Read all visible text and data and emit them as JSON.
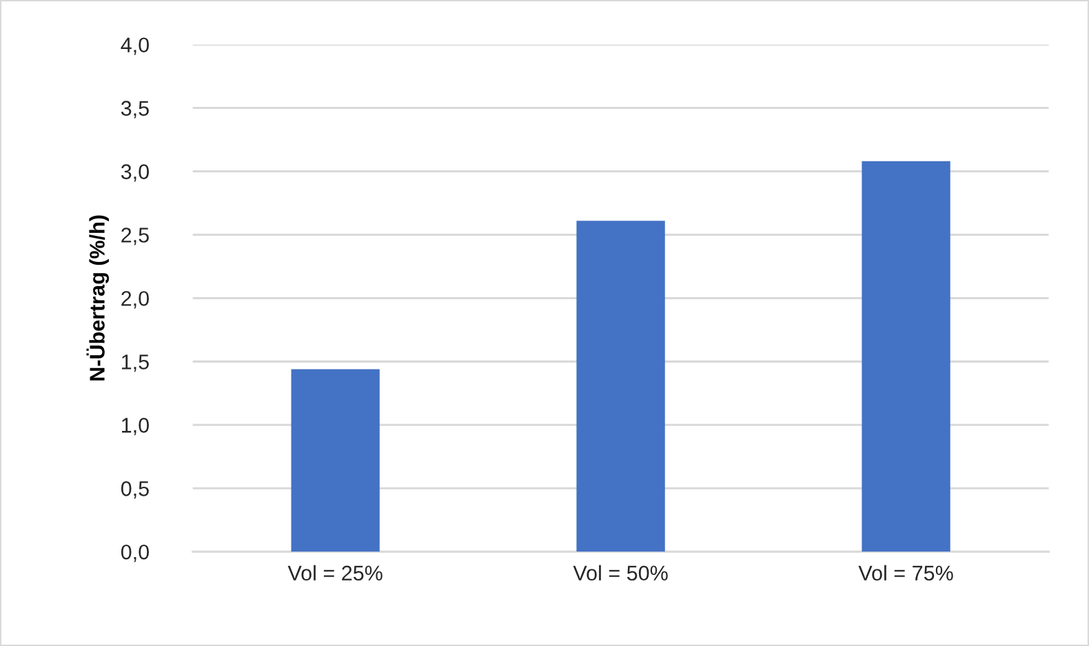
{
  "chart_data": {
    "type": "bar",
    "ylabel": "N-Übertrag (%/h)",
    "categories": [
      "Vol = 25%",
      "Vol = 50%",
      "Vol = 75%"
    ],
    "values": [
      1.44,
      2.61,
      3.08
    ],
    "color": "#4472c4",
    "ylim": [
      0,
      4
    ],
    "yticks": [
      {
        "value": 0,
        "label": "0,0"
      },
      {
        "value": 0.5,
        "label": "0,5"
      },
      {
        "value": 1,
        "label": "1,0"
      },
      {
        "value": 1.5,
        "label": "1,5"
      },
      {
        "value": 2,
        "label": "2,0"
      },
      {
        "value": 2.5,
        "label": "2,5"
      },
      {
        "value": 3,
        "label": "3,0"
      },
      {
        "value": 3.5,
        "label": "3,5"
      },
      {
        "value": 4,
        "label": "4,0"
      }
    ],
    "grid": "y",
    "legend": false
  }
}
